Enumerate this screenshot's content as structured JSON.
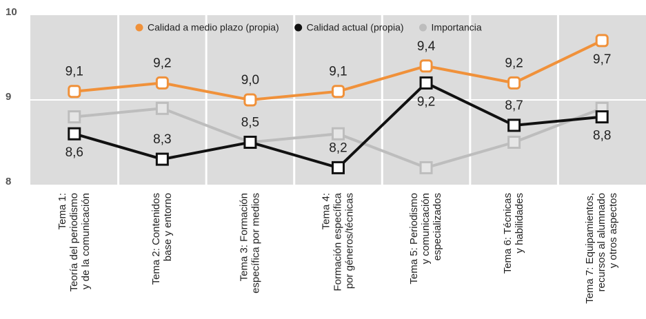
{
  "chart_data": {
    "type": "line",
    "categories": [
      [
        "Tema 1:",
        "Teoría del periodismo",
        "y de la comunicación"
      ],
      [
        "Tema 2: Contenidos",
        "base y entorno"
      ],
      [
        "Tema 3: Formación",
        "específica por medios"
      ],
      [
        "Tema 4:",
        "Formación específica",
        "por géneros/técnicas"
      ],
      [
        "Tema 5: Periodismo",
        "y comunicación",
        "especializados"
      ],
      [
        "Tema 6: Técnicas",
        "y habilidades"
      ],
      [
        "Tema 7: Equipamientos,",
        "recursos al alumnado",
        "y otros aspectos"
      ]
    ],
    "series": [
      {
        "name": "Calidad a medio plazo (propia)",
        "color": "#f0913a",
        "values": [
          9.1,
          9.2,
          9.0,
          9.1,
          9.4,
          9.2,
          9.7
        ],
        "value_labels": [
          "9,1",
          "9,2",
          "9,0",
          "9,1",
          "9,4",
          "9,2",
          "9,7"
        ]
      },
      {
        "name": "Calidad actual (propia)",
        "color": "#111111",
        "values": [
          8.6,
          8.3,
          8.5,
          8.2,
          9.2,
          8.7,
          8.8
        ],
        "value_labels": [
          "8,6",
          "8,3",
          "8,5",
          "8,2",
          "9,2",
          "8,7",
          "8,8"
        ]
      },
      {
        "name": "Importancia",
        "color": "#bdbdbd",
        "values": [
          8.8,
          8.9,
          8.5,
          8.6,
          8.2,
          8.5,
          8.9
        ]
      }
    ],
    "ylim": [
      8,
      10
    ],
    "yticks": [
      8,
      9,
      10
    ],
    "grid": true
  }
}
